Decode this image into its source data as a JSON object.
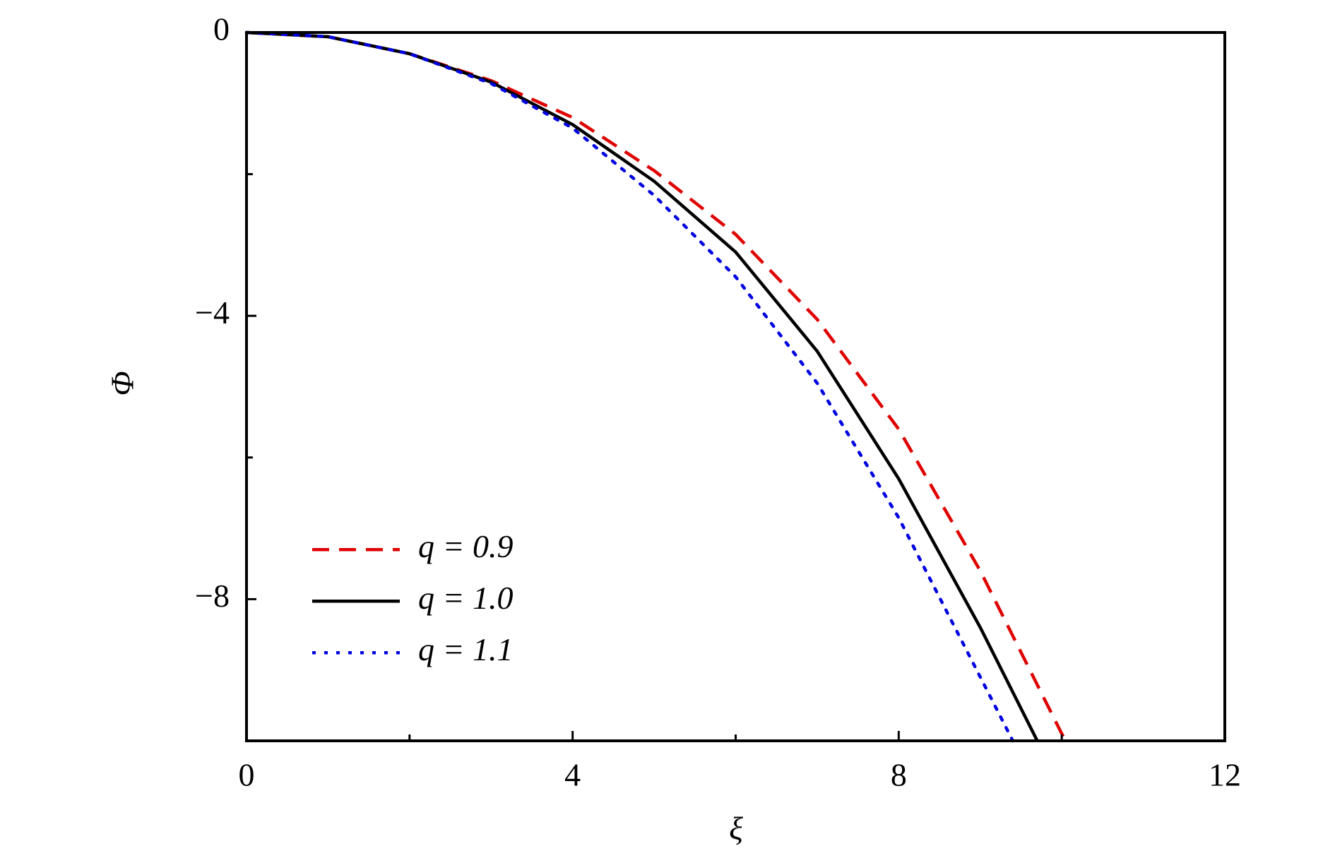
{
  "chart_data": {
    "type": "line",
    "xlabel": "ξ",
    "ylabel": "Φ",
    "xlim": [
      0,
      12
    ],
    "xticks": [
      0,
      4,
      8,
      12
    ],
    "xminorticks": [
      2,
      6,
      10
    ],
    "ylim": [
      -10,
      0
    ],
    "yticks": [
      {
        "value": 0,
        "label": "0"
      },
      {
        "value": -4,
        "label": "−4"
      },
      {
        "value": -8,
        "label": "−8"
      }
    ],
    "yminorticks": [
      -2,
      -6
    ],
    "legend": "lower left",
    "series": [
      {
        "name": "q = 0.9",
        "color": "#e00000",
        "dash": "dashed",
        "x": [
          0,
          1,
          2,
          3,
          4,
          5,
          6,
          7,
          8,
          9,
          10,
          10.05
        ],
        "values": [
          0,
          -0.06,
          -0.3,
          -0.68,
          -1.2,
          -1.95,
          -2.85,
          -4.05,
          -5.6,
          -7.6,
          -9.9,
          -10
        ]
      },
      {
        "name": "q = 1.0",
        "color": "#000000",
        "dash": "solid",
        "x": [
          0,
          1,
          2,
          3,
          4,
          5,
          6,
          7,
          8,
          9,
          9.7
        ],
        "values": [
          0,
          -0.06,
          -0.3,
          -0.7,
          -1.3,
          -2.1,
          -3.1,
          -4.5,
          -6.3,
          -8.4,
          -10
        ]
      },
      {
        "name": "q = 1.1",
        "color": "#0000e0",
        "dash": "dotted",
        "x": [
          0,
          1,
          2,
          3,
          4,
          5,
          6,
          7,
          8,
          9,
          9.4
        ],
        "values": [
          0,
          -0.06,
          -0.3,
          -0.72,
          -1.35,
          -2.3,
          -3.45,
          -4.95,
          -6.85,
          -9.1,
          -10
        ]
      }
    ]
  }
}
